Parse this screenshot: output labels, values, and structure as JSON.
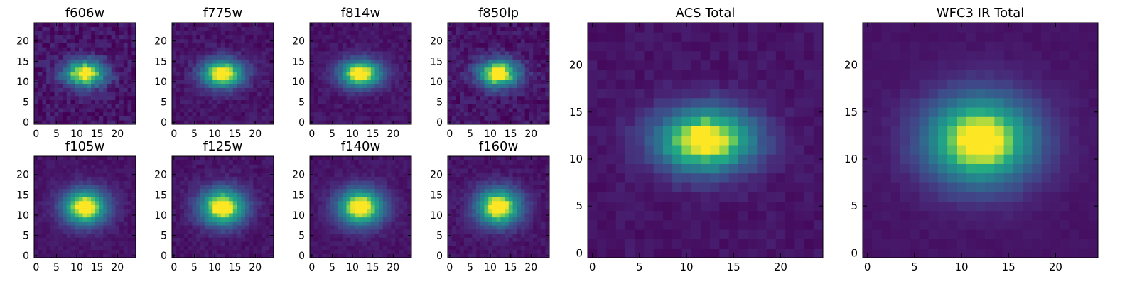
{
  "figure": {
    "background": "#ffffff",
    "colormap": "viridis"
  },
  "chart_data": [
    {
      "type": "heatmap",
      "title": "f606w",
      "grid": "25x25",
      "xlim": [
        -0.5,
        24.5
      ],
      "ylim": [
        -0.5,
        24.5
      ],
      "xticks": [
        0,
        5,
        10,
        15,
        20
      ],
      "yticks": [
        0,
        5,
        10,
        15,
        20
      ],
      "center": [
        12,
        12
      ],
      "sigma_x": 3.6,
      "sigma_y": 2.3,
      "peak_value": 1.0,
      "noise": 0.09,
      "grid_lines": false,
      "colorbar": false
    },
    {
      "type": "heatmap",
      "title": "f775w",
      "grid": "25x25",
      "xlim": [
        -0.5,
        24.5
      ],
      "ylim": [
        -0.5,
        24.5
      ],
      "xticks": [
        0,
        5,
        10,
        15,
        20
      ],
      "yticks": [
        0,
        5,
        10,
        15,
        20
      ],
      "center": [
        12,
        12
      ],
      "sigma_x": 3.7,
      "sigma_y": 2.4,
      "peak_value": 1.0,
      "noise": 0.06,
      "grid_lines": false,
      "colorbar": false
    },
    {
      "type": "heatmap",
      "title": "f814w",
      "grid": "25x25",
      "xlim": [
        -0.5,
        24.5
      ],
      "ylim": [
        -0.5,
        24.5
      ],
      "xticks": [
        0,
        5,
        10,
        15,
        20
      ],
      "yticks": [
        0,
        5,
        10,
        15,
        20
      ],
      "center": [
        12,
        12
      ],
      "sigma_x": 3.7,
      "sigma_y": 2.4,
      "peak_value": 1.0,
      "noise": 0.05,
      "grid_lines": false,
      "colorbar": false
    },
    {
      "type": "heatmap",
      "title": "f850lp",
      "grid": "25x25",
      "xlim": [
        -0.5,
        24.5
      ],
      "ylim": [
        -0.5,
        24.5
      ],
      "xticks": [
        0,
        5,
        10,
        15,
        20
      ],
      "yticks": [
        0,
        5,
        10,
        15,
        20
      ],
      "center": [
        12,
        12
      ],
      "sigma_x": 3.6,
      "sigma_y": 2.4,
      "peak_value": 1.0,
      "noise": 0.08,
      "grid_lines": false,
      "colorbar": false
    },
    {
      "type": "heatmap",
      "title": "f105w",
      "grid": "25x25",
      "xlim": [
        -0.5,
        24.5
      ],
      "ylim": [
        -0.5,
        24.5
      ],
      "xticks": [
        0,
        5,
        10,
        15,
        20
      ],
      "yticks": [
        0,
        5,
        10,
        15,
        20
      ],
      "center": [
        12,
        12
      ],
      "sigma_x": 3.9,
      "sigma_y": 3.1,
      "peak_value": 1.0,
      "noise": 0.04,
      "grid_lines": false,
      "colorbar": false
    },
    {
      "type": "heatmap",
      "title": "f125w",
      "grid": "25x25",
      "xlim": [
        -0.5,
        24.5
      ],
      "ylim": [
        -0.5,
        24.5
      ],
      "xticks": [
        0,
        5,
        10,
        15,
        20
      ],
      "yticks": [
        0,
        5,
        10,
        15,
        20
      ],
      "center": [
        12,
        12
      ],
      "sigma_x": 4.0,
      "sigma_y": 3.2,
      "peak_value": 1.0,
      "noise": 0.05,
      "grid_lines": false,
      "colorbar": false
    },
    {
      "type": "heatmap",
      "title": "f140w",
      "grid": "25x25",
      "xlim": [
        -0.5,
        24.5
      ],
      "ylim": [
        -0.5,
        24.5
      ],
      "xticks": [
        0,
        5,
        10,
        15,
        20
      ],
      "yticks": [
        0,
        5,
        10,
        15,
        20
      ],
      "center": [
        12,
        12
      ],
      "sigma_x": 4.0,
      "sigma_y": 3.2,
      "peak_value": 1.0,
      "noise": 0.04,
      "grid_lines": false,
      "colorbar": false
    },
    {
      "type": "heatmap",
      "title": "f160w",
      "grid": "25x25",
      "xlim": [
        -0.5,
        24.5
      ],
      "ylim": [
        -0.5,
        24.5
      ],
      "xticks": [
        0,
        5,
        10,
        15,
        20
      ],
      "yticks": [
        0,
        5,
        10,
        15,
        20
      ],
      "center": [
        12,
        12
      ],
      "sigma_x": 3.9,
      "sigma_y": 3.2,
      "peak_value": 1.0,
      "noise": 0.05,
      "grid_lines": false,
      "colorbar": false
    },
    {
      "type": "heatmap",
      "title": "ACS Total",
      "grid": "25x25",
      "xlim": [
        -0.5,
        24.5
      ],
      "ylim": [
        -0.5,
        24.5
      ],
      "xticks": [
        0,
        5,
        10,
        15,
        20
      ],
      "yticks": [
        0,
        5,
        10,
        15,
        20
      ],
      "center": [
        12,
        12
      ],
      "sigma_x": 3.7,
      "sigma_y": 2.4,
      "peak_value": 1.0,
      "noise": 0.04,
      "grid_lines": false,
      "colorbar": false
    },
    {
      "type": "heatmap",
      "title": "WFC3 IR Total",
      "grid": "25x25",
      "xlim": [
        -0.5,
        24.5
      ],
      "ylim": [
        -0.5,
        24.5
      ],
      "xticks": [
        0,
        5,
        10,
        15,
        20
      ],
      "yticks": [
        0,
        5,
        10,
        15,
        20
      ],
      "center": [
        12,
        12
      ],
      "sigma_x": 4.1,
      "sigma_y": 3.3,
      "peak_value": 1.0,
      "noise": 0.02,
      "grid_lines": false,
      "colorbar": false
    }
  ]
}
